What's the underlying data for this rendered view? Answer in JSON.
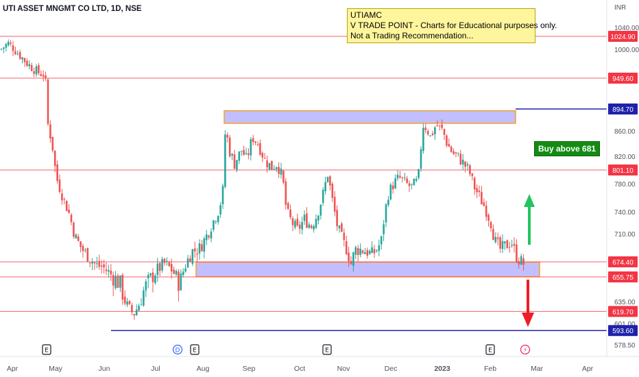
{
  "header": {
    "ticker": "UTI ASSET MNGMT CO LTD, 1D, NSE"
  },
  "note": {
    "lines": [
      "UTIAMC",
      "V TRADE POINT - Charts for Educational purposes only.",
      "Not a Trading Recommendation..."
    ]
  },
  "annotation": {
    "buy_label": "Buy above 681"
  },
  "axis": {
    "currency": "INR"
  },
  "colors": {
    "up": "#26a69a",
    "down": "#ef5350",
    "red_line": "#f23645",
    "blue_line": "#1e22aa",
    "zone_fill": "#b7b3ff",
    "zone_border": "#f7a21b",
    "green_arrow": "#22c55e",
    "red_arrow": "#ef1c25"
  },
  "chart_data": {
    "type": "candlestick",
    "yticks": [
      1040,
      1000,
      860,
      820,
      780,
      740,
      710,
      635,
      601,
      578.5
    ],
    "ytick_labels": [
      "1040.00",
      "1000.00",
      "860.00",
      "820.00",
      "780.00",
      "740.00",
      "710.00",
      "635.00",
      "601.00",
      "578.50"
    ],
    "xticks": [
      "Apr",
      "May",
      "Jun",
      "Jul",
      "Aug",
      "Sep",
      "Oct",
      "Nov",
      "Dec",
      "2023",
      "Feb",
      "Mar",
      "Apr"
    ],
    "price_levels": [
      {
        "value": 1024.9,
        "label": "1024.90",
        "style": "red"
      },
      {
        "value": 949.6,
        "label": "949.60",
        "style": "red"
      },
      {
        "value": 894.7,
        "label": "894.70",
        "style": "blue"
      },
      {
        "value": 801.1,
        "label": "801.10",
        "style": "red"
      },
      {
        "value": 674.4,
        "label": "674.40",
        "style": "red"
      },
      {
        "value": 655.75,
        "label": "655.75",
        "style": "red"
      },
      {
        "value": 619.7,
        "label": "619.70",
        "style": "red"
      },
      {
        "value": 593.6,
        "label": "593.60",
        "style": "blue"
      }
    ],
    "zones": [
      {
        "name": "resistance",
        "top": 892,
        "bottom": 872
      },
      {
        "name": "support",
        "top": 674,
        "bottom": 656
      }
    ],
    "events": [
      {
        "label": "E",
        "month": "May"
      },
      {
        "label": "D",
        "month": "Jul"
      },
      {
        "label": "E",
        "month": "Aug"
      },
      {
        "label": "E",
        "month": "Oct"
      },
      {
        "label": "E",
        "month": "Feb"
      },
      {
        "label": "⚡",
        "month": "Feb"
      }
    ]
  }
}
